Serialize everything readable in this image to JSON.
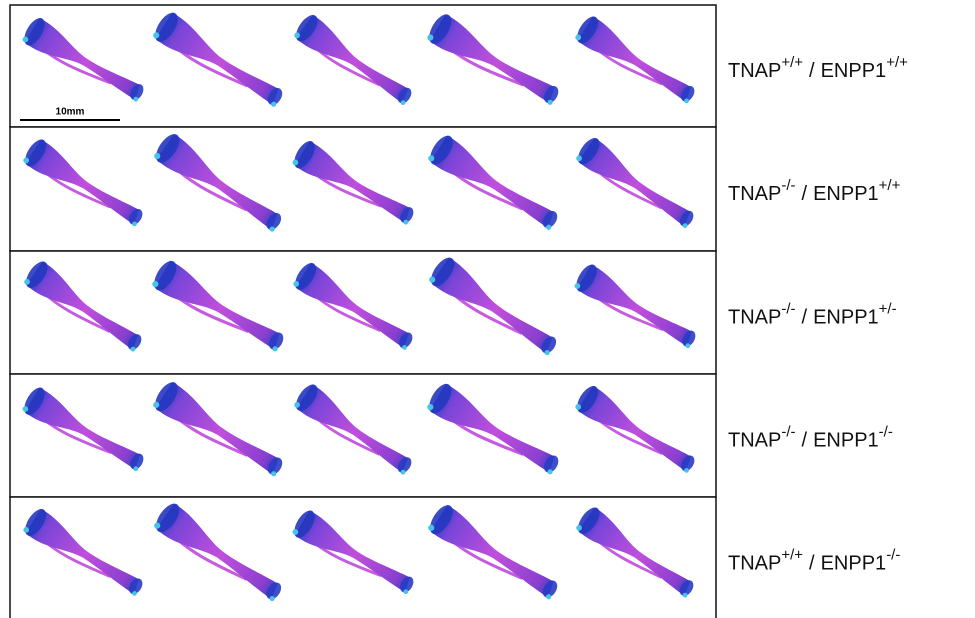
{
  "scale_bar": "10mm",
  "rows": [
    {
      "gene1": "TNAP",
      "sup1": "+/+",
      "separator": "/",
      "gene2": "ENPP1",
      "sup2": "+/+"
    },
    {
      "gene1": "TNAP",
      "sup1": "-/-",
      "separator": "/",
      "gene2": "ENPP1",
      "sup2": "+/+"
    },
    {
      "gene1": "TNAP",
      "sup1": "-/-",
      "separator": "/",
      "gene2": "ENPP1",
      "sup2": "+/-"
    },
    {
      "gene1": "TNAP",
      "sup1": "-/-",
      "separator": "/",
      "gene2": "ENPP1",
      "sup2": "-/-"
    },
    {
      "gene1": "TNAP",
      "sup1": "+/+",
      "separator": "/",
      "gene2": "ENPP1",
      "sup2": "-/-"
    }
  ]
}
